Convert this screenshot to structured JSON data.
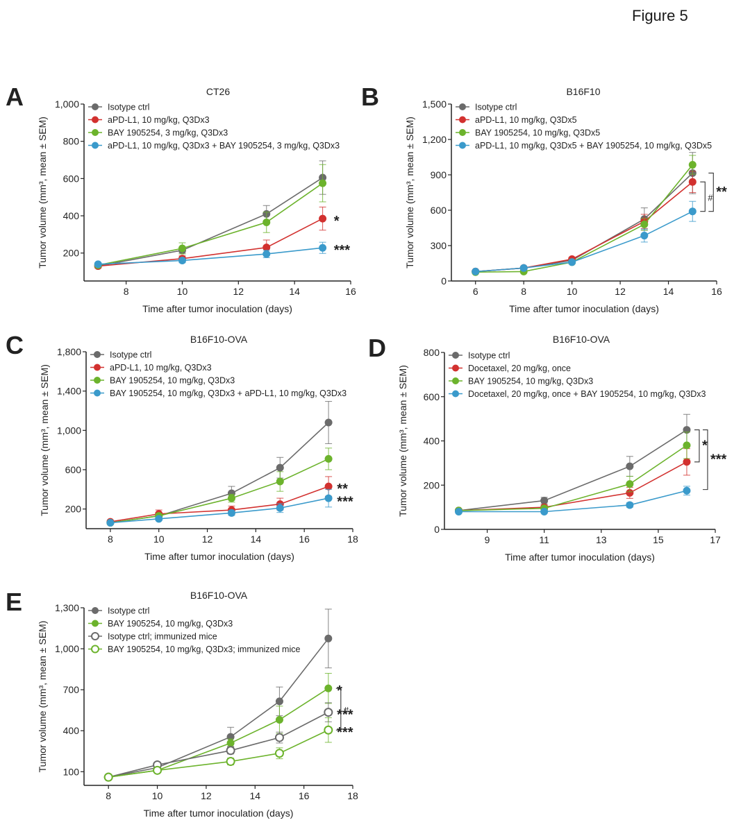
{
  "figure_title": "Figure 5",
  "colors": {
    "isotype": "#6b6b6b",
    "red": "#d2312f",
    "green": "#6cb32c",
    "blue": "#3a9acb",
    "axis": "#222222"
  },
  "chart_data": [
    {
      "panel": "A",
      "type": "line",
      "title": "CT26",
      "xlabel": "Time after tumor inoculation (days)",
      "ylabel": "Tumor volume (mm³, mean ± SEM)",
      "xlim": [
        6.5,
        16
      ],
      "ylim": [
        50,
        1000
      ],
      "xticks": [
        8,
        10,
        12,
        14,
        16
      ],
      "yticks": [
        200,
        400,
        600,
        800,
        1000
      ],
      "ytick_labels": [
        "200",
        "400",
        "600",
        "800",
        "1,000"
      ],
      "legend_position": "top-left",
      "series": [
        {
          "name": "Isotype ctrl",
          "color": "isotype",
          "filled": true,
          "x": [
            7,
            10,
            13,
            15
          ],
          "y": [
            130,
            215,
            410,
            605
          ],
          "sem": [
            10,
            15,
            45,
            90
          ]
        },
        {
          "name": "aPD-L1, 10 mg/kg, Q3Dx3",
          "color": "red",
          "filled": true,
          "x": [
            7,
            10,
            13,
            15
          ],
          "y": [
            130,
            170,
            230,
            385
          ],
          "sem": [
            8,
            15,
            40,
            62
          ]
        },
        {
          "name": "BAY 1905254, 3 mg/kg, Q3Dx3",
          "color": "green",
          "filled": true,
          "x": [
            7,
            10,
            13,
            15
          ],
          "y": [
            135,
            225,
            365,
            575
          ],
          "sem": [
            8,
            30,
            55,
            100
          ]
        },
        {
          "name": "aPD-L1, 10 mg/kg, Q3Dx3 + BAY 1905254, 3 mg/kg, Q3Dx3",
          "color": "blue",
          "filled": true,
          "x": [
            7,
            10,
            13,
            15
          ],
          "y": [
            140,
            160,
            195,
            228
          ],
          "sem": [
            8,
            12,
            20,
            30
          ]
        }
      ],
      "annotations": [
        {
          "text": "*",
          "x": 15.4,
          "y": 385
        },
        {
          "text": "***",
          "x": 15.4,
          "y": 228
        }
      ],
      "brackets": []
    },
    {
      "panel": "B",
      "type": "line",
      "title": "B16F10",
      "xlabel": "Time after tumor inoculation (days)",
      "ylabel": "Tumor volume (mm³, mean ± SEM)",
      "xlim": [
        5,
        16
      ],
      "ylim": [
        0,
        1500
      ],
      "xticks": [
        6,
        8,
        10,
        12,
        14,
        16
      ],
      "yticks": [
        0,
        300,
        600,
        900,
        1200,
        1500
      ],
      "ytick_labels": [
        "0",
        "300",
        "600",
        "900",
        "1,200",
        "1,500"
      ],
      "legend_position": "top-left",
      "series": [
        {
          "name": "Isotype ctrl",
          "color": "isotype",
          "filled": true,
          "x": [
            6,
            8,
            10,
            13,
            15
          ],
          "y": [
            80,
            110,
            175,
            525,
            915
          ],
          "sem": [
            5,
            8,
            15,
            95,
            175
          ]
        },
        {
          "name": "aPD-L1, 10 mg/kg, Q3Dx5",
          "color": "red",
          "filled": true,
          "x": [
            6,
            8,
            10,
            13,
            15
          ],
          "y": [
            80,
            110,
            185,
            505,
            840
          ],
          "sem": [
            5,
            8,
            15,
            60,
            90
          ]
        },
        {
          "name": "BAY 1905254, 10 mg/kg, Q3Dx5",
          "color": "green",
          "filled": true,
          "x": [
            6,
            8,
            10,
            13,
            15
          ],
          "y": [
            75,
            80,
            160,
            480,
            985
          ],
          "sem": [
            5,
            8,
            15,
            50,
            80
          ]
        },
        {
          "name": "aPD-L1, 10 mg/kg, Q3Dx5 + BAY 1905254, 10 mg/kg, Q3Dx5",
          "color": "blue",
          "filled": true,
          "x": [
            6,
            8,
            10,
            13,
            15
          ],
          "y": [
            80,
            110,
            160,
            385,
            590
          ],
          "sem": [
            5,
            8,
            12,
            55,
            85
          ]
        }
      ],
      "annotations": [],
      "brackets": [
        {
          "label": "#",
          "y_top": 840,
          "y_bottom": 590,
          "level": 1
        },
        {
          "label": "**",
          "y_top": 915,
          "y_bottom": 590,
          "level": 2
        }
      ]
    },
    {
      "panel": "C",
      "type": "line",
      "title": "B16F10-OVA",
      "xlabel": "Time after tumor inoculation (days)",
      "ylabel": "Tumor volume (mm³, mean ± SEM)",
      "xlim": [
        7,
        18
      ],
      "ylim": [
        0,
        1800
      ],
      "xticks": [
        8,
        10,
        12,
        14,
        16,
        18
      ],
      "yticks": [
        200,
        600,
        1000,
        1400,
        1800
      ],
      "ytick_labels": [
        "200",
        "600",
        "1,000",
        "1,400",
        "1,800"
      ],
      "legend_position": "top-left",
      "series": [
        {
          "name": "Isotype ctrl",
          "color": "isotype",
          "filled": true,
          "x": [
            8,
            10,
            13,
            15,
            17
          ],
          "y": [
            60,
            130,
            360,
            620,
            1080
          ],
          "sem": [
            8,
            20,
            70,
            105,
            215
          ]
        },
        {
          "name": "aPD-L1, 10 mg/kg, Q3Dx3",
          "color": "red",
          "filled": true,
          "x": [
            8,
            10,
            13,
            15,
            17
          ],
          "y": [
            70,
            150,
            190,
            250,
            430
          ],
          "sem": [
            8,
            40,
            40,
            60,
            100
          ]
        },
        {
          "name": "BAY 1905254, 10 mg/kg, Q3Dx3",
          "color": "green",
          "filled": true,
          "x": [
            8,
            10,
            13,
            15,
            17
          ],
          "y": [
            60,
            130,
            310,
            480,
            710
          ],
          "sem": [
            8,
            20,
            40,
            100,
            110
          ]
        },
        {
          "name": "BAY 1905254, 10 mg/kg, Q3Dx3 + aPD-L1, 10 mg/kg, Q3Dx3",
          "color": "blue",
          "filled": true,
          "x": [
            8,
            10,
            13,
            15,
            17
          ],
          "y": [
            60,
            100,
            160,
            210,
            310
          ],
          "sem": [
            8,
            15,
            25,
            45,
            90
          ]
        }
      ],
      "annotations": [
        {
          "text": "**",
          "x": 17.35,
          "y": 430
        },
        {
          "text": "***",
          "x": 17.35,
          "y": 300
        }
      ],
      "brackets": []
    },
    {
      "panel": "D",
      "type": "line",
      "title": "B16F10-OVA",
      "xlabel": "Time after tumor inoculation (days)",
      "ylabel": "Tumor volume (mm³, mean ± SEM)",
      "xlim": [
        7.5,
        17
      ],
      "ylim": [
        0,
        800
      ],
      "xticks": [
        9,
        11,
        13,
        15,
        17
      ],
      "yticks": [
        0,
        200,
        400,
        600,
        800
      ],
      "ytick_labels": [
        "0",
        "200",
        "400",
        "600",
        "800"
      ],
      "legend_position": "top-left",
      "series": [
        {
          "name": "Isotype ctrl",
          "color": "isotype",
          "filled": true,
          "x": [
            8,
            11,
            14,
            16
          ],
          "y": [
            85,
            130,
            285,
            450
          ],
          "sem": [
            5,
            15,
            45,
            70
          ]
        },
        {
          "name": "Docetaxel, 20 mg/kg, once",
          "color": "red",
          "filled": true,
          "x": [
            8,
            11,
            14,
            16
          ],
          "y": [
            85,
            100,
            165,
            305
          ],
          "sem": [
            5,
            10,
            25,
            60
          ]
        },
        {
          "name": "BAY 1905254, 10 mg/kg, Q3Dx3",
          "color": "green",
          "filled": true,
          "x": [
            8,
            11,
            14,
            16
          ],
          "y": [
            85,
            95,
            205,
            380
          ],
          "sem": [
            5,
            10,
            35,
            60
          ]
        },
        {
          "name": "Docetaxel, 20 mg/kg, once + BAY 1905254, 10 mg/kg, Q3Dx3",
          "color": "blue",
          "filled": true,
          "x": [
            8,
            11,
            14,
            16
          ],
          "y": [
            80,
            80,
            110,
            175
          ],
          "sem": [
            5,
            5,
            10,
            20
          ]
        }
      ],
      "annotations": [],
      "brackets": [
        {
          "label": "*",
          "y_top": 450,
          "y_bottom": 305,
          "level": 1
        },
        {
          "label": "***",
          "y_top": 450,
          "y_bottom": 180,
          "level": 2
        }
      ]
    },
    {
      "panel": "E",
      "type": "line",
      "title": "B16F10-OVA",
      "xlabel": "Time after tumor inoculation (days)",
      "ylabel": "Tumor volume (mm³, mean ± SEM)",
      "xlim": [
        7,
        18
      ],
      "ylim": [
        0,
        1300
      ],
      "xticks": [
        8,
        10,
        12,
        14,
        16,
        18
      ],
      "yticks": [
        100,
        400,
        700,
        1000,
        1300
      ],
      "ytick_labels": [
        "100",
        "400",
        "700",
        "1,000",
        "1,300"
      ],
      "legend_position": "top-left",
      "series": [
        {
          "name": "Isotype ctrl",
          "color": "isotype",
          "filled": true,
          "x": [
            8,
            10,
            13,
            15,
            17
          ],
          "y": [
            60,
            130,
            355,
            615,
            1075
          ],
          "sem": [
            8,
            15,
            70,
            105,
            215
          ]
        },
        {
          "name": "BAY 1905254, 10 mg/kg, Q3Dx3",
          "color": "green",
          "filled": true,
          "x": [
            8,
            10,
            13,
            15,
            17
          ],
          "y": [
            60,
            110,
            310,
            480,
            710
          ],
          "sem": [
            8,
            15,
            30,
            100,
            110
          ]
        },
        {
          "name": "Isotype ctrl; immunized mice",
          "color": "isotype",
          "filled": false,
          "x": [
            8,
            10,
            13,
            15,
            17
          ],
          "y": [
            60,
            150,
            255,
            350,
            535
          ],
          "sem": [
            8,
            10,
            25,
            40,
            70
          ]
        },
        {
          "name": "BAY 1905254, 10 mg/kg, Q3Dx3; immunized mice",
          "color": "green",
          "filled": false,
          "x": [
            8,
            10,
            13,
            15,
            17
          ],
          "y": [
            60,
            110,
            175,
            235,
            405
          ],
          "sem": [
            8,
            10,
            25,
            40,
            90
          ]
        }
      ],
      "annotations": [
        {
          "text": "*",
          "x": 17.35,
          "y": 710
        },
        {
          "text": "***",
          "x": 17.35,
          "y": 535
        },
        {
          "text": "***",
          "x": 17.35,
          "y": 405
        }
      ],
      "brackets": [
        {
          "label": "#",
          "y_top": 710,
          "y_bottom": 405,
          "level": 1
        }
      ]
    }
  ]
}
